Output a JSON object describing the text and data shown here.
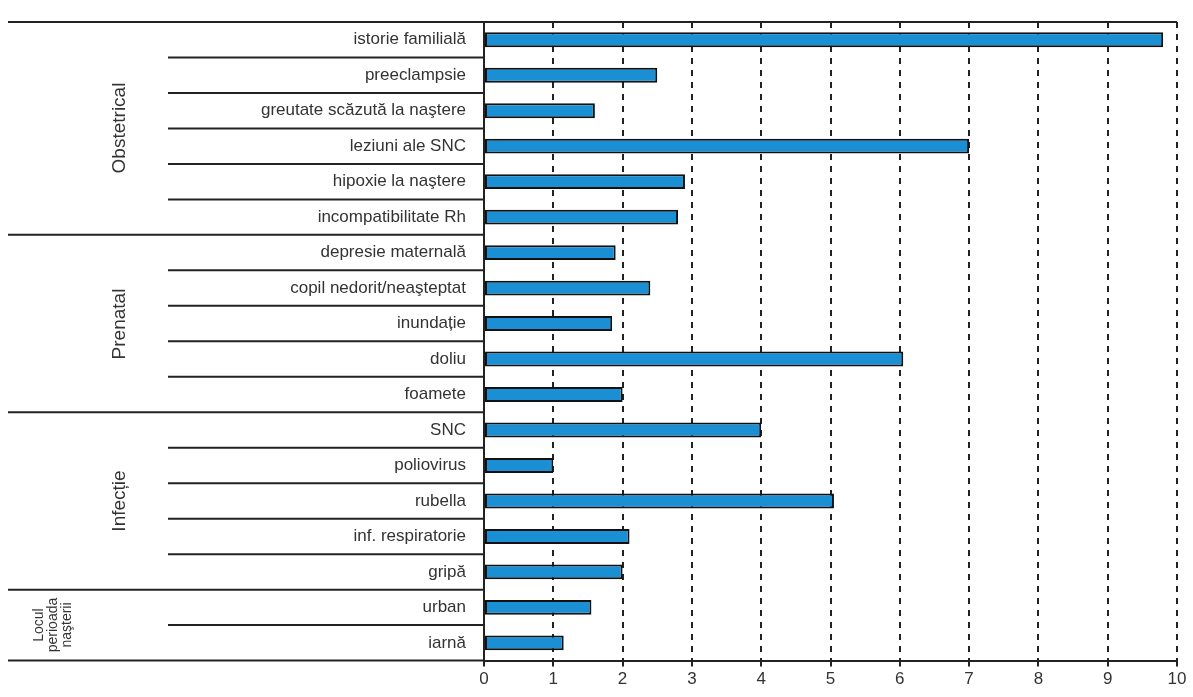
{
  "chart_data": {
    "type": "bar",
    "orientation": "horizontal",
    "categories": [
      "istorie familială",
      "preeclampsie",
      "greutate scăzută la naştere",
      "leziuni ale SNC",
      "hipoxie la naştere",
      "incompatibilitate Rh",
      "depresie maternală",
      "copil nedorit/neaşteptat",
      "inundație",
      "doliu",
      "foamete",
      "SNC",
      "poliovirus",
      "rubella",
      "inf. respiratorie",
      "gripă",
      "urban",
      "iarnă"
    ],
    "values": [
      9.8,
      2.5,
      1.6,
      7,
      2.9,
      2.8,
      1.9,
      2.4,
      1.85,
      6.05,
      2,
      4,
      1,
      5.05,
      2.1,
      2,
      1.55,
      1.15
    ],
    "color": "#1b8fd3",
    "xlim": [
      0,
      10
    ],
    "xticks": [
      0,
      1,
      2,
      3,
      4,
      5,
      6,
      7,
      8,
      9,
      10
    ],
    "grid": "x",
    "legend": false,
    "annotations": [
      "Obstetrical",
      "Prenatal",
      "Infecție",
      "Locul perioada naşterii"
    ]
  }
}
